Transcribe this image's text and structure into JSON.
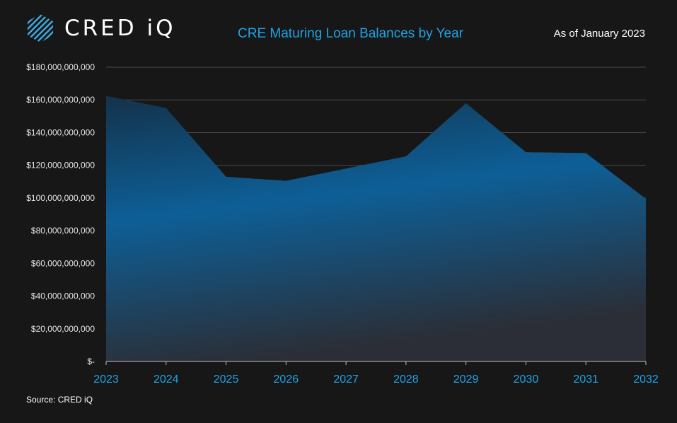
{
  "header": {
    "brand": "CRED iQ",
    "title": "CRE Maturing Loan Balances by Year",
    "as_of": "As of January 2023"
  },
  "footer": {
    "source": "Source:  CRED iQ"
  },
  "colors": {
    "background": "#171717",
    "accent": "#1fa3e6",
    "area_top": "#0d5f97",
    "area_bottom": "#2b2e36",
    "grid": "#4a4a4a"
  },
  "chart_data": {
    "type": "area",
    "title": "CRE Maturing Loan Balances by Year",
    "x": [
      "2023",
      "2024",
      "2025",
      "2026",
      "2027",
      "2028",
      "2029",
      "2030",
      "2031",
      "2032"
    ],
    "series": [
      {
        "values": [
          162500000000,
          155000000000,
          113000000000,
          110500000000,
          118000000000,
          125500000000,
          158000000000,
          128000000000,
          127500000000,
          99500000000
        ]
      }
    ],
    "ylim": [
      0,
      180000000000
    ],
    "yticks": [
      {
        "value": 0,
        "label": "$-"
      },
      {
        "value": 20000000000,
        "label": "$20,000,000,000"
      },
      {
        "value": 40000000000,
        "label": "$40,000,000,000"
      },
      {
        "value": 60000000000,
        "label": "$60,000,000,000"
      },
      {
        "value": 80000000000,
        "label": "$80,000,000,000"
      },
      {
        "value": 100000000000,
        "label": "$100,000,000,000"
      },
      {
        "value": 120000000000,
        "label": "$120,000,000,000"
      },
      {
        "value": 140000000000,
        "label": "$140,000,000,000"
      },
      {
        "value": 160000000000,
        "label": "$160,000,000,000"
      },
      {
        "value": 180000000000,
        "label": "$180,000,000,000"
      }
    ],
    "grid": true,
    "legend": "none"
  }
}
